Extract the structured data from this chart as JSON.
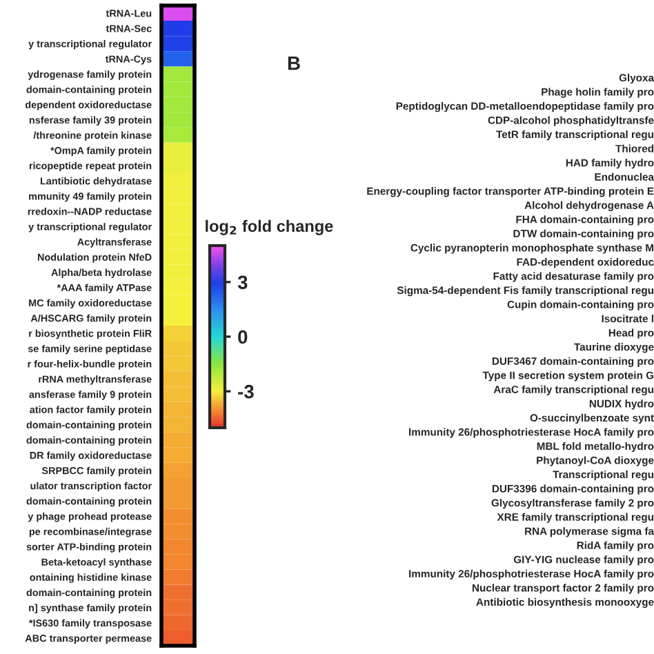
{
  "chart_data": [
    {
      "type": "heatmap",
      "categories": [
        null
      ],
      "y_categories": [
        "tRNA-Leu",
        "tRNA-Sec",
        "y transcriptional regulator",
        "tRNA-Cys",
        "ydrogenase family protein",
        "domain-containing protein",
        "dependent oxidoreductase",
        "nsferase family 39 protein",
        "/threonine protein kinase",
        "*OmpA family protein",
        "ricopeptide repeat protein",
        "Lantibiotic dehydratase",
        "mmunity 49 family protein",
        "rredoxin--NADP reductase",
        "y transcriptional regulator",
        "Acyltransferase",
        "Nodulation protein NfeD",
        "Alpha/beta hydrolase",
        "*AAA family ATPase",
        "MC family oxidoreductase",
        "A/HSCARG family protein",
        "r biosynthetic protein FliR",
        "se family serine peptidase",
        "r four-helix-bundle protein",
        "rRNA methyltransferase",
        "ansferase family 9 protein",
        "ation factor family protein",
        "domain-containing protein",
        "domain-containing protein",
        "DR family oxidoreductase",
        "SRPBCC family protein",
        "ulator transcription factor",
        "domain-containing protein",
        "y phage prohead protease",
        "pe recombinase/integrase",
        "sorter ATP-binding protein",
        "Beta-ketoacyl synthase",
        "ontaining histidine kinase",
        "domain-containing protein",
        "n] synthase family protein",
        "*IS630 family transposase",
        "ABC transporter permease"
      ],
      "cells": [
        [
          4.8
        ],
        [
          3.0
        ],
        [
          2.9
        ],
        [
          2.3
        ],
        [
          -1.8
        ],
        [
          -1.8
        ],
        [
          -1.8
        ],
        [
          -1.8
        ],
        [
          -1.9
        ],
        [
          -2.8
        ],
        [
          -2.8
        ],
        [
          -2.9
        ],
        [
          -2.9
        ],
        [
          -2.9
        ],
        [
          -2.9
        ],
        [
          -2.9
        ],
        [
          -2.9
        ],
        [
          -2.9
        ],
        [
          -3.0
        ],
        [
          -3.0
        ],
        [
          -3.0
        ],
        [
          -3.3
        ],
        [
          -3.4
        ],
        [
          -3.4
        ],
        [
          -3.5
        ],
        [
          -3.5
        ],
        [
          -3.6
        ],
        [
          -3.6
        ],
        [
          -3.7
        ],
        [
          -3.7
        ],
        [
          -3.8
        ],
        [
          -3.9
        ],
        [
          -3.9
        ],
        [
          -4.0
        ],
        [
          -4.0
        ],
        [
          -4.1
        ],
        [
          -4.1
        ],
        [
          -4.2
        ],
        [
          -4.3
        ],
        [
          -4.3
        ],
        [
          -4.4
        ],
        [
          -4.5
        ]
      ],
      "clabel": "log$_{2}$ fold change",
      "clim": [
        -5,
        5
      ],
      "cticks": [
        3,
        0,
        {
          "value": -3,
          "label": "-3"
        }
      ]
    },
    {
      "type": "other",
      "title": "B",
      "annotations": [
        "Glyoxa",
        "Phage holin family pro",
        "Peptidoglycan DD-metalloendopeptidase family pro",
        "CDP-alcohol phosphatidyltransfe",
        "TetR family transcriptional regu",
        "Thiored",
        "HAD family hydro",
        "Endonuclea",
        "Energy-coupling factor transporter ATP-binding protein E",
        "Alcohol dehydrogenase A",
        "FHA domain-containing pro",
        "DTW domain-containing pro",
        "Cyclic pyranopterin monophosphate synthase M",
        "FAD-dependent oxidoreduc",
        "Fatty acid desaturase family pro",
        "Sigma-54-dependent Fis family transcriptional regu",
        "Cupin domain-containing pro",
        "Isocitrate l",
        "Head pro",
        "Taurine dioxyge",
        "DUF3467 domain-containing pro",
        "Type II secretion system protein G",
        "AraC family transcriptional regu",
        "NUDIX hydro",
        "O-succinylbenzoate synt",
        "Immunity 26/phosphotriesterase HocA family pro",
        "MBL fold metallo-hydro",
        "Phytanoyl-CoA dioxyge",
        "Transcriptional regu",
        "DUF3396 domain-containing pro",
        "Glycosyltransferase family 2 pro",
        "XRE family transcriptional regu",
        "RNA polymerase sigma fa",
        "RidA family pro",
        "GIY-YIG nuclease family pro",
        "Immunity 26/phosphotriesterase HocA family pro",
        "Nuclear transport factor 2 family pro",
        "Antibiotic biosynthesis monooxyge"
      ]
    }
  ]
}
